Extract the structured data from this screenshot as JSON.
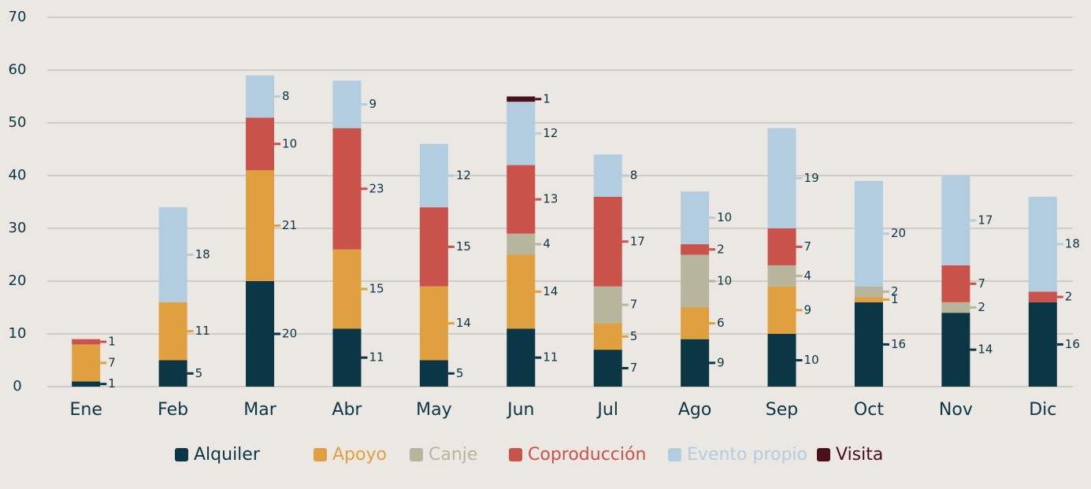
{
  "chart_data": {
    "type": "stacked_bar",
    "categories": [
      "Ene",
      "Feb",
      "Mar",
      "Abr",
      "May",
      "Jun",
      "Jul",
      "Ago",
      "Sep",
      "Oct",
      "Nov",
      "Dic"
    ],
    "series": [
      {
        "name": "Alquiler",
        "color": "#0b3645",
        "values": [
          1,
          5,
          20,
          11,
          5,
          11,
          7,
          9,
          10,
          16,
          14,
          16
        ]
      },
      {
        "name": "Apoyo",
        "color": "#e1a03f",
        "values": [
          7,
          11,
          21,
          15,
          14,
          14,
          5,
          6,
          9,
          1,
          null,
          null
        ]
      },
      {
        "name": "Canje",
        "color": "#b7b69c",
        "values": [
          null,
          null,
          null,
          null,
          null,
          4,
          7,
          10,
          4,
          2,
          2,
          null
        ]
      },
      {
        "name": "Coproducción",
        "color": "#c9524a",
        "values": [
          1,
          null,
          10,
          23,
          15,
          13,
          17,
          2,
          7,
          null,
          7,
          2
        ]
      },
      {
        "name": "Evento propio",
        "color": "#b2cde0",
        "values": [
          null,
          18,
          8,
          9,
          12,
          12,
          8,
          10,
          19,
          20,
          17,
          18
        ]
      },
      {
        "name": "Visita",
        "color": "#4a0f18",
        "values": [
          null,
          null,
          null,
          null,
          null,
          1,
          null,
          null,
          null,
          null,
          null,
          null
        ]
      }
    ],
    "ylim": [
      0,
      70
    ],
    "yticks": [
      0,
      10,
      20,
      30,
      40,
      50,
      60,
      70
    ],
    "grid": true
  }
}
